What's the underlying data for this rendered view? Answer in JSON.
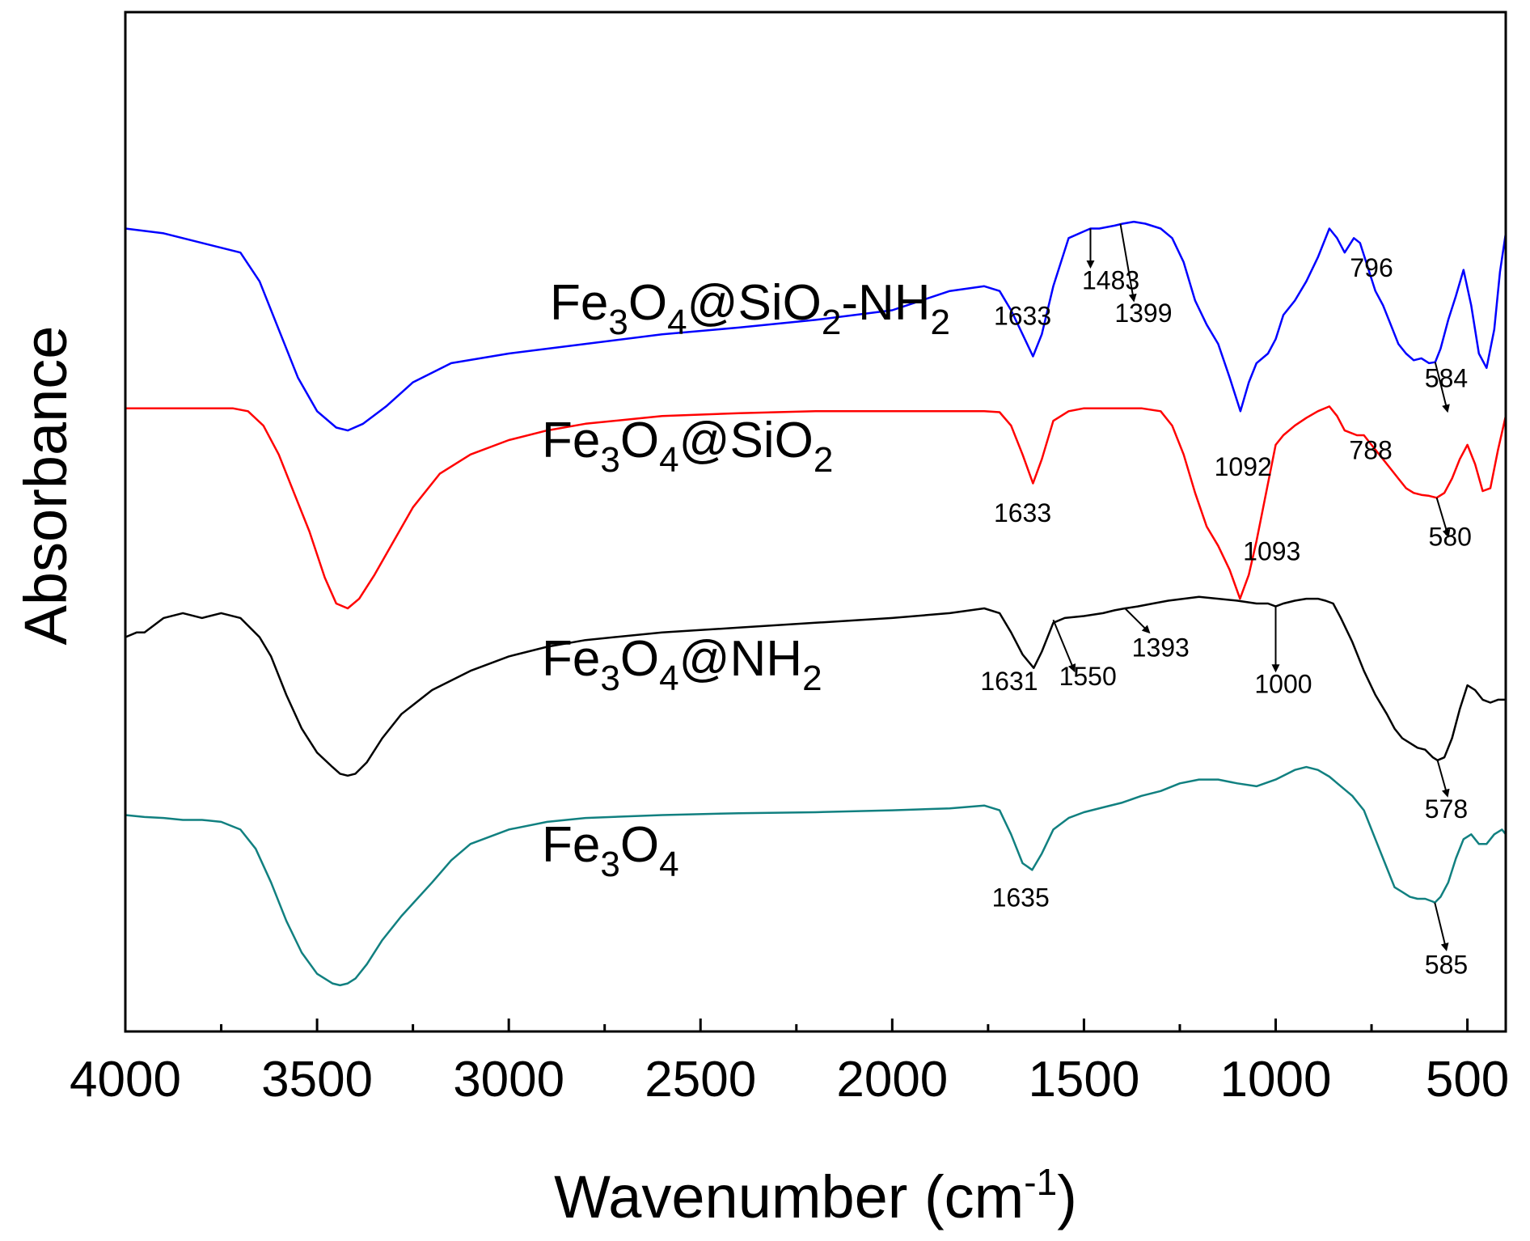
{
  "chart_data": {
    "type": "line",
    "title": "",
    "xlabel": "Wavenumber (cm",
    "xlabel_sup": "-1",
    "xlabel_close": ")",
    "ylabel": "Absorbance",
    "xlim": [
      4000,
      400
    ],
    "ylim": [
      0,
      10.6
    ],
    "x_reversed": true,
    "grid": false,
    "x_ticks": [
      4000,
      3500,
      3000,
      2500,
      2000,
      1500,
      1000,
      500
    ],
    "x_tick_labels": [
      "4000",
      "3500",
      "3000",
      "2500",
      "2000",
      "1500",
      "1000",
      "500"
    ],
    "x_minor_ticks": [
      3750,
      3250,
      2750,
      2250,
      1750,
      1250,
      750
    ],
    "series": [
      {
        "name": "Fe3O4@SiO2-NH2",
        "label_parts": [
          {
            "t": "Fe",
            "s": ""
          },
          {
            "t": "3",
            "s": "sub"
          },
          {
            "t": "O",
            "s": ""
          },
          {
            "t": "4",
            "s": "sub"
          },
          {
            "t": "@SiO",
            "s": ""
          },
          {
            "t": "2",
            "s": "sub"
          },
          {
            "t": "-NH",
            "s": ""
          },
          {
            "t": "2",
            "s": "sub"
          }
        ],
        "color": "#0000ff",
        "x": [
          4000,
          3900,
          3800,
          3700,
          3650,
          3600,
          3550,
          3500,
          3450,
          3420,
          3380,
          3320,
          3250,
          3150,
          3000,
          2800,
          2600,
          2400,
          2200,
          2000,
          1850,
          1760,
          1720,
          1690,
          1660,
          1633,
          1610,
          1580,
          1540,
          1500,
          1483,
          1460,
          1420,
          1399,
          1370,
          1340,
          1300,
          1270,
          1240,
          1210,
          1180,
          1150,
          1120,
          1092,
          1070,
          1050,
          1020,
          1000,
          980,
          950,
          920,
          890,
          860,
          840,
          820,
          796,
          780,
          760,
          740,
          720,
          700,
          680,
          660,
          640,
          620,
          600,
          584,
          570,
          550,
          530,
          510,
          490,
          470,
          450,
          430,
          415,
          400
        ],
        "y": [
          8.35,
          8.3,
          8.2,
          8.1,
          7.8,
          7.3,
          6.8,
          6.45,
          6.28,
          6.25,
          6.32,
          6.5,
          6.75,
          6.95,
          7.05,
          7.15,
          7.25,
          7.32,
          7.4,
          7.5,
          7.7,
          7.75,
          7.7,
          7.5,
          7.25,
          7.02,
          7.25,
          7.75,
          8.25,
          8.32,
          8.35,
          8.35,
          8.38,
          8.4,
          8.42,
          8.4,
          8.35,
          8.25,
          8.0,
          7.6,
          7.35,
          7.15,
          6.8,
          6.45,
          6.75,
          6.95,
          7.05,
          7.2,
          7.45,
          7.6,
          7.8,
          8.05,
          8.35,
          8.25,
          8.1,
          8.25,
          8.2,
          7.95,
          7.7,
          7.55,
          7.35,
          7.15,
          7.05,
          6.98,
          7.0,
          6.95,
          6.96,
          7.1,
          7.4,
          7.65,
          7.92,
          7.55,
          7.05,
          6.9,
          7.3,
          7.9,
          8.3
        ]
      },
      {
        "name": "Fe3O4@SiO2",
        "label_parts": [
          {
            "t": "Fe",
            "s": ""
          },
          {
            "t": "3",
            "s": "sub"
          },
          {
            "t": "O",
            "s": ""
          },
          {
            "t": "4",
            "s": "sub"
          },
          {
            "t": "@SiO",
            "s": ""
          },
          {
            "t": "2",
            "s": "sub"
          }
        ],
        "color": "#ff0000",
        "x": [
          4000,
          3900,
          3800,
          3720,
          3680,
          3640,
          3600,
          3560,
          3520,
          3480,
          3450,
          3420,
          3390,
          3350,
          3300,
          3250,
          3180,
          3100,
          3000,
          2900,
          2800,
          2600,
          2400,
          2200,
          2000,
          1850,
          1760,
          1720,
          1690,
          1660,
          1633,
          1610,
          1580,
          1540,
          1500,
          1450,
          1400,
          1350,
          1300,
          1270,
          1240,
          1210,
          1180,
          1150,
          1120,
          1093,
          1070,
          1050,
          1020,
          1000,
          980,
          950,
          920,
          890,
          860,
          840,
          820,
          788,
          770,
          750,
          720,
          700,
          680,
          660,
          640,
          620,
          600,
          580,
          560,
          540,
          520,
          500,
          480,
          460,
          440,
          420,
          400
        ],
        "y": [
          6.48,
          6.48,
          6.48,
          6.48,
          6.45,
          6.3,
          6.0,
          5.6,
          5.2,
          4.72,
          4.45,
          4.4,
          4.5,
          4.75,
          5.1,
          5.45,
          5.8,
          6.0,
          6.15,
          6.25,
          6.32,
          6.4,
          6.43,
          6.45,
          6.45,
          6.45,
          6.45,
          6.44,
          6.3,
          6.0,
          5.7,
          5.95,
          6.35,
          6.45,
          6.48,
          6.48,
          6.48,
          6.48,
          6.45,
          6.3,
          6.0,
          5.6,
          5.25,
          5.05,
          4.8,
          4.5,
          4.75,
          5.1,
          5.7,
          6.1,
          6.2,
          6.3,
          6.38,
          6.45,
          6.5,
          6.4,
          6.25,
          6.2,
          6.2,
          6.1,
          5.95,
          5.85,
          5.75,
          5.65,
          5.6,
          5.58,
          5.57,
          5.55,
          5.6,
          5.75,
          5.95,
          6.1,
          5.9,
          5.62,
          5.65,
          6.05,
          6.4
        ]
      },
      {
        "name": "Fe3O4@NH2",
        "label_parts": [
          {
            "t": "Fe",
            "s": ""
          },
          {
            "t": "3",
            "s": "sub"
          },
          {
            "t": "O",
            "s": ""
          },
          {
            "t": "4",
            "s": "sub"
          },
          {
            "t": "@NH",
            "s": ""
          },
          {
            "t": "2",
            "s": "sub"
          }
        ],
        "color": "#000000",
        "x": [
          4000,
          3970,
          3950,
          3900,
          3850,
          3800,
          3750,
          3700,
          3650,
          3620,
          3580,
          3540,
          3500,
          3460,
          3440,
          3420,
          3400,
          3370,
          3330,
          3280,
          3200,
          3100,
          3000,
          2900,
          2800,
          2600,
          2400,
          2200,
          2000,
          1850,
          1760,
          1720,
          1690,
          1660,
          1631,
          1610,
          1580,
          1550,
          1500,
          1450,
          1420,
          1393,
          1360,
          1320,
          1280,
          1240,
          1200,
          1150,
          1100,
          1050,
          1020,
          1000,
          980,
          950,
          920,
          890,
          870,
          850,
          830,
          800,
          770,
          740,
          710,
          690,
          670,
          650,
          630,
          610,
          590,
          578,
          560,
          540,
          520,
          500,
          480,
          460,
          440,
          420,
          400
        ],
        "y": [
          4.1,
          4.15,
          4.15,
          4.3,
          4.35,
          4.3,
          4.35,
          4.3,
          4.1,
          3.9,
          3.5,
          3.15,
          2.9,
          2.75,
          2.68,
          2.66,
          2.68,
          2.8,
          3.05,
          3.3,
          3.55,
          3.75,
          3.9,
          4.0,
          4.07,
          4.15,
          4.2,
          4.25,
          4.3,
          4.35,
          4.4,
          4.35,
          4.15,
          3.92,
          3.78,
          3.95,
          4.25,
          4.3,
          4.32,
          4.35,
          4.38,
          4.4,
          4.42,
          4.45,
          4.48,
          4.5,
          4.52,
          4.5,
          4.48,
          4.45,
          4.45,
          4.42,
          4.45,
          4.48,
          4.5,
          4.5,
          4.48,
          4.45,
          4.3,
          4.05,
          3.75,
          3.5,
          3.3,
          3.15,
          3.05,
          3.0,
          2.95,
          2.93,
          2.85,
          2.82,
          2.85,
          3.05,
          3.35,
          3.6,
          3.55,
          3.45,
          3.42,
          3.45,
          3.45
        ]
      },
      {
        "name": "Fe3O4",
        "label_parts": [
          {
            "t": "Fe",
            "s": ""
          },
          {
            "t": "3",
            "s": "sub"
          },
          {
            "t": "O",
            "s": ""
          },
          {
            "t": "4",
            "s": "sub"
          }
        ],
        "color": "#118080",
        "x": [
          4000,
          3950,
          3900,
          3850,
          3800,
          3750,
          3700,
          3660,
          3620,
          3580,
          3540,
          3500,
          3460,
          3440,
          3420,
          3400,
          3370,
          3330,
          3280,
          3200,
          3150,
          3100,
          3000,
          2900,
          2800,
          2600,
          2400,
          2200,
          2000,
          1850,
          1760,
          1720,
          1690,
          1660,
          1635,
          1610,
          1580,
          1540,
          1500,
          1450,
          1400,
          1350,
          1300,
          1250,
          1200,
          1150,
          1100,
          1050,
          1000,
          950,
          920,
          890,
          860,
          830,
          800,
          770,
          740,
          710,
          690,
          670,
          650,
          630,
          610,
          590,
          585,
          570,
          550,
          530,
          510,
          490,
          470,
          450,
          430,
          410,
          400
        ],
        "y": [
          2.25,
          2.23,
          2.22,
          2.2,
          2.2,
          2.18,
          2.1,
          1.9,
          1.55,
          1.15,
          0.82,
          0.6,
          0.5,
          0.48,
          0.5,
          0.55,
          0.7,
          0.95,
          1.2,
          1.55,
          1.78,
          1.95,
          2.1,
          2.18,
          2.22,
          2.25,
          2.27,
          2.28,
          2.3,
          2.32,
          2.35,
          2.3,
          2.05,
          1.75,
          1.68,
          1.85,
          2.1,
          2.22,
          2.28,
          2.33,
          2.38,
          2.45,
          2.5,
          2.58,
          2.62,
          2.62,
          2.58,
          2.55,
          2.62,
          2.72,
          2.75,
          2.72,
          2.65,
          2.55,
          2.45,
          2.3,
          2.0,
          1.7,
          1.5,
          1.45,
          1.4,
          1.38,
          1.38,
          1.35,
          1.34,
          1.4,
          1.55,
          1.8,
          2.0,
          2.05,
          1.95,
          1.95,
          2.05,
          2.1,
          2.05
        ]
      }
    ],
    "annotations": [
      {
        "text": "1633",
        "series": 0,
        "peak_x": 1633,
        "label_x": 1660,
        "label_y": 7.35,
        "arrow": false
      },
      {
        "text": "1483",
        "series": 0,
        "peak_x": 1483,
        "label_x": 1430,
        "label_y": 7.72,
        "arrow": true,
        "ax1": 1483,
        "ay1": 8.35,
        "ax2": 1483,
        "ay2": 7.95
      },
      {
        "text": "1399",
        "series": 0,
        "peak_x": 1399,
        "label_x": 1345,
        "label_y": 7.38,
        "arrow": true,
        "ax1": 1405,
        "ay1": 8.4,
        "ax2": 1370,
        "ay2": 7.6
      },
      {
        "text": "1092",
        "series": 0,
        "peak_x": 1092,
        "label_x": 1085,
        "label_y": 5.78,
        "arrow": false
      },
      {
        "text": "796",
        "series": 0,
        "peak_x": 796,
        "label_x": 750,
        "label_y": 7.85,
        "arrow": false
      },
      {
        "text": "584",
        "series": 0,
        "peak_x": 584,
        "label_x": 555,
        "label_y": 6.7,
        "arrow": true,
        "ax1": 584,
        "ay1": 6.96,
        "ax2": 552,
        "ay2": 6.45
      },
      {
        "text": "1633",
        "series": 1,
        "peak_x": 1633,
        "label_x": 1660,
        "label_y": 5.3,
        "arrow": false
      },
      {
        "text": "1093",
        "series": 1,
        "peak_x": 1093,
        "label_x": 1010,
        "label_y": 4.9,
        "arrow": false
      },
      {
        "text": "788",
        "series": 1,
        "peak_x": 788,
        "label_x": 752,
        "label_y": 5.95,
        "arrow": false
      },
      {
        "text": "580",
        "series": 1,
        "peak_x": 580,
        "label_x": 545,
        "label_y": 5.05,
        "arrow": true,
        "ax1": 580,
        "ay1": 5.55,
        "ax2": 550,
        "ay2": 5.15
      },
      {
        "text": "1631",
        "series": 2,
        "peak_x": 1631,
        "label_x": 1695,
        "label_y": 3.55,
        "arrow": false
      },
      {
        "text": "1550",
        "series": 2,
        "peak_x": 1550,
        "label_x": 1490,
        "label_y": 3.6,
        "arrow": true,
        "ax1": 1580,
        "ay1": 4.28,
        "ax2": 1525,
        "ay2": 3.75
      },
      {
        "text": "1393",
        "series": 2,
        "peak_x": 1393,
        "label_x": 1300,
        "label_y": 3.9,
        "arrow": true,
        "ax1": 1393,
        "ay1": 4.4,
        "ax2": 1330,
        "ay2": 4.15
      },
      {
        "text": "1000",
        "series": 2,
        "peak_x": 1000,
        "label_x": 980,
        "label_y": 3.52,
        "arrow": true,
        "ax1": 1000,
        "ay1": 4.42,
        "ax2": 1000,
        "ay2": 3.75
      },
      {
        "text": "578",
        "series": 2,
        "peak_x": 578,
        "label_x": 555,
        "label_y": 2.22,
        "arrow": true,
        "ax1": 578,
        "ay1": 2.82,
        "ax2": 552,
        "ay2": 2.45
      },
      {
        "text": "1635",
        "series": 3,
        "peak_x": 1635,
        "label_x": 1665,
        "label_y": 1.3,
        "arrow": false
      },
      {
        "text": "585",
        "series": 3,
        "peak_x": 585,
        "label_x": 555,
        "label_y": 0.6,
        "arrow": true,
        "ax1": 585,
        "ay1": 1.34,
        "ax2": 555,
        "ay2": 0.85
      }
    ]
  }
}
